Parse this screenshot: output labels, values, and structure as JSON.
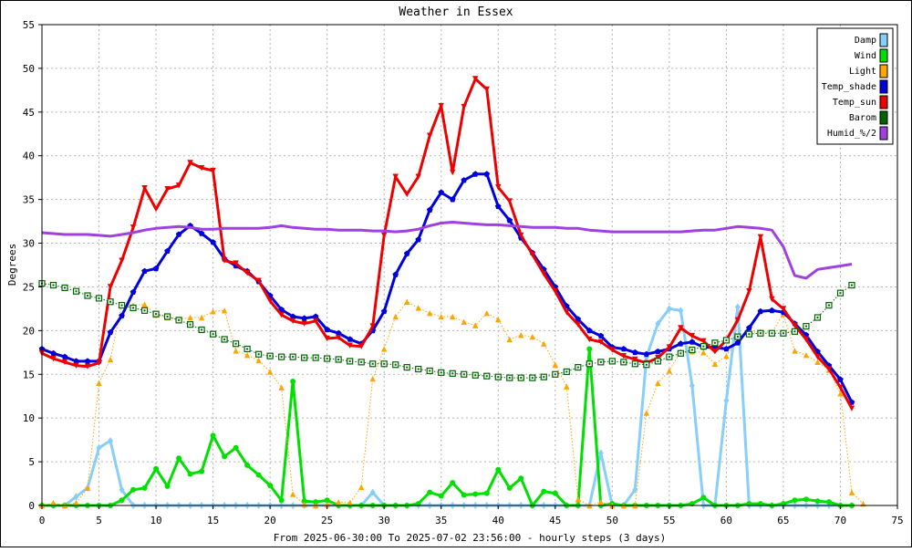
{
  "chart_data": {
    "type": "line",
    "title": "Weather in Essex",
    "xlabel": "From 2025-06-30:00 To 2025-07-02 23:56:00 - hourly steps (3 days)",
    "ylabel": "Degrees",
    "xlim": [
      0,
      75
    ],
    "ylim": [
      0,
      55
    ],
    "xticks": [
      0,
      5,
      10,
      15,
      20,
      25,
      30,
      35,
      40,
      45,
      50,
      55,
      60,
      65,
      70,
      75
    ],
    "yticks": [
      0,
      5,
      10,
      15,
      20,
      25,
      30,
      35,
      40,
      45,
      50,
      55
    ],
    "grid": true,
    "legend_position": "top-right",
    "background": "#ffffff",
    "series": [
      {
        "name": "Damp",
        "color": "#87cefa",
        "marker": "diamond",
        "line": "solid",
        "width": 3,
        "values": [
          0,
          0,
          0,
          1,
          2,
          6.6,
          7.4,
          1.8,
          0,
          0,
          0,
          0,
          0,
          0,
          0,
          0,
          0,
          0,
          0,
          0,
          0,
          0,
          0,
          0,
          0,
          0,
          0,
          0,
          0,
          1.5,
          0,
          0,
          0,
          0,
          0,
          0,
          0,
          0,
          0,
          0,
          0,
          0,
          0,
          0,
          0,
          0,
          0,
          0,
          0,
          6,
          0,
          0,
          1.8,
          17,
          20.8,
          22.5,
          22.3,
          13.7,
          0,
          0,
          12,
          22.7,
          0,
          0,
          0,
          0,
          0,
          0,
          0,
          0,
          0,
          0
        ]
      },
      {
        "name": "Wind",
        "color": "#00e000",
        "marker": "circle",
        "line": "solid",
        "width": 3,
        "values": [
          0,
          0,
          0,
          0,
          0,
          0,
          0,
          0.6,
          1.8,
          2,
          4.2,
          2.2,
          5.4,
          3.6,
          3.9,
          8,
          5.6,
          6.6,
          4.6,
          3.5,
          2.3,
          0.6,
          14.2,
          0.5,
          0.4,
          0.6,
          0,
          0,
          0,
          0,
          0,
          0,
          0,
          0.2,
          1.5,
          1.1,
          2.6,
          1.2,
          1.3,
          1.4,
          4.1,
          2,
          3.1,
          0,
          1.6,
          1.4,
          0,
          0,
          17.9,
          0,
          0.2,
          0,
          0,
          0,
          0,
          0,
          0,
          0.2,
          0.9,
          0,
          0,
          0,
          0.2,
          0.2,
          0,
          0.2,
          0.6,
          0.7,
          0.5,
          0.4,
          0,
          0
        ]
      },
      {
        "name": "Light",
        "color": "#ffa500",
        "marker": "triangle-up",
        "line": "dotted",
        "width": 1,
        "values": [
          0,
          0.3,
          0,
          0.3,
          2,
          14,
          16.7,
          23,
          22.9,
          23,
          21.8,
          21.5,
          21.3,
          21.5,
          21.5,
          22.2,
          22.3,
          17.7,
          17.2,
          16.6,
          15.3,
          13.5,
          1.3,
          0.1,
          0,
          0.1,
          0.4,
          0.3,
          2.1,
          14.5,
          17.9,
          21.6,
          23.3,
          22.6,
          22,
          21.6,
          21.6,
          21,
          20.6,
          22,
          21.3,
          19,
          19.5,
          19.3,
          18.5,
          16.1,
          13.6,
          0.7,
          0,
          0.4,
          0,
          0,
          0,
          10.6,
          14,
          15.4,
          17.6,
          17.6,
          17.5,
          16.2,
          17.1,
          19,
          19.8,
          19.9,
          19.8,
          21.9,
          17.7,
          17.2,
          16.4,
          15.5,
          12.8,
          1.5,
          0.2
        ]
      },
      {
        "name": "Temp_shade",
        "color": "#0000dd",
        "marker": "pentagon",
        "line": "solid",
        "width": 3,
        "values": [
          17.9,
          17.4,
          17,
          16.5,
          16.5,
          16.5,
          19.8,
          21.7,
          24.4,
          26.8,
          27.1,
          29.1,
          31,
          32,
          31.1,
          30.1,
          28.2,
          27.4,
          26.8,
          25.6,
          24,
          22.4,
          21.6,
          21.4,
          21.6,
          20.1,
          19.7,
          19,
          18.5,
          20,
          22.2,
          26.4,
          28.8,
          30.4,
          33.8,
          35.8,
          35,
          37.2,
          37.9,
          37.9,
          34.2,
          32.6,
          30.6,
          28.9,
          27,
          25,
          22.8,
          21.3,
          20,
          19.4,
          18.1,
          17.9,
          17.5,
          17.3,
          17.6,
          17.9,
          18.5,
          18.7,
          18.1,
          18.1,
          17.9,
          18.6,
          20.3,
          22.2,
          22.3,
          22.1,
          20.8,
          19.5,
          17.6,
          16,
          14.4,
          11.8
        ]
      },
      {
        "name": "Temp_sun",
        "color": "#ee0000",
        "marker": "triangle-down",
        "line": "solid",
        "width": 3,
        "values": [
          17.4,
          16.8,
          16.4,
          16,
          15.9,
          16.3,
          25,
          28,
          31.8,
          36.3,
          33.9,
          36.2,
          36.6,
          39.2,
          38.6,
          38.3,
          28,
          27.7,
          26.6,
          25.7,
          23.4,
          21.8,
          21.1,
          20.8,
          21.1,
          19.1,
          19.2,
          18.3,
          18.2,
          20.5,
          30.9,
          37.6,
          35.6,
          37.6,
          42.3,
          45.7,
          38.1,
          45.6,
          48.8,
          47.6,
          36.4,
          34.8,
          30.9,
          28.7,
          26.5,
          24.5,
          22.1,
          20.7,
          19,
          18.7,
          17.8,
          17.1,
          16.7,
          16.3,
          16.9,
          18.1,
          20.3,
          19.4,
          18.8,
          17.6,
          18.9,
          21.2,
          24.5,
          30.7,
          23.6,
          22.5,
          20.6,
          19,
          17,
          15.6,
          13.5,
          11.1
        ]
      },
      {
        "name": "Barom",
        "color": "#006400",
        "marker": "square",
        "line": "dotted",
        "width": 1,
        "values": [
          25.4,
          25.2,
          24.9,
          24.5,
          24,
          23.7,
          23.3,
          22.9,
          22.6,
          22.3,
          21.9,
          21.6,
          21.2,
          20.7,
          20.1,
          19.6,
          19,
          18.5,
          17.9,
          17.3,
          17.1,
          17,
          17,
          16.9,
          16.9,
          16.8,
          16.7,
          16.5,
          16.4,
          16.2,
          16.2,
          16.1,
          15.8,
          15.6,
          15.4,
          15.2,
          15.1,
          15,
          14.9,
          14.8,
          14.7,
          14.6,
          14.6,
          14.6,
          14.7,
          15,
          15.3,
          15.8,
          16.2,
          16.4,
          16.5,
          16.4,
          16.2,
          16.1,
          16.5,
          17,
          17.4,
          17.8,
          18.2,
          18.6,
          18.9,
          19.3,
          19.6,
          19.7,
          19.7,
          19.7,
          19.9,
          20.5,
          21.5,
          22.9,
          24.3,
          25.2
        ]
      },
      {
        "name": "Humid_%/2",
        "color": "#a040e0",
        "marker": "none",
        "line": "solid",
        "width": 3,
        "values": [
          31.2,
          31.1,
          31,
          31,
          31,
          30.9,
          30.8,
          31,
          31.2,
          31.5,
          31.7,
          31.8,
          31.9,
          31.8,
          31.6,
          31.6,
          31.7,
          31.7,
          31.7,
          31.7,
          31.8,
          32,
          31.8,
          31.7,
          31.6,
          31.6,
          31.5,
          31.5,
          31.5,
          31.4,
          31.4,
          31.3,
          31.4,
          31.6,
          32,
          32.3,
          32.4,
          32.3,
          32.2,
          32.1,
          32.1,
          32,
          31.9,
          31.8,
          31.8,
          31.8,
          31.7,
          31.7,
          31.5,
          31.4,
          31.3,
          31.3,
          31.3,
          31.3,
          31.3,
          31.3,
          31.3,
          31.4,
          31.5,
          31.5,
          31.7,
          31.9,
          31.8,
          31.7,
          31.5,
          29.6,
          26.3,
          26,
          27,
          27.2,
          27.4,
          27.6
        ]
      }
    ]
  }
}
